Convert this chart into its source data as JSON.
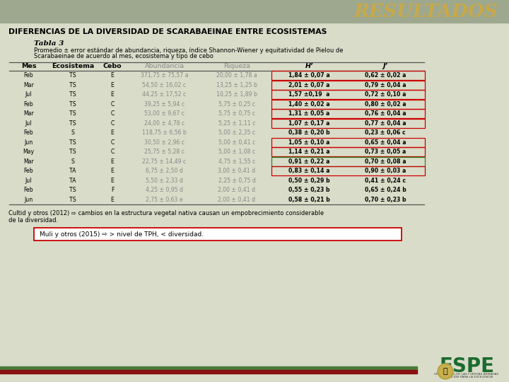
{
  "title": "RESULTADOS",
  "heading": "DIFERENCIAS DE LA DIVERSIDAD DE SCARABAEINAE ENTRE ECOSISTEMAS",
  "table_title": "Tabla 3",
  "table_subtitle_line1": "Promedio ± error estándar de abundancia, riqueza, índice Shannon-Wiener y equitatividad de Pielou de",
  "table_subtitle_line2": "Scarabaeinae de acuerdo al mes, ecosistema y tipo de cebo",
  "col_headers": [
    "Mes",
    "Ecosistema",
    "Cebo",
    "Abundancia",
    "Riqueza",
    "H’",
    "J’"
  ],
  "rows": [
    [
      "Feb",
      "TS",
      "E",
      "371,75 ± 75,57 a",
      "20,00 ± 1,78 a",
      "1,84 ± 0,07 a",
      "0,62 ± 0,02 a"
    ],
    [
      "Mar",
      "TS",
      "E",
      "54,50 ± 16,02 c",
      "13,25 ± 1,25 b",
      "2,01 ± 0,07 a",
      "0,79 ± 0,04 a"
    ],
    [
      "Jul",
      "TS",
      "E",
      "44,25 ± 17,52 c",
      "10,25 ± 1,89 b",
      "1,57 ±0,19  a",
      "0,72 ± 0,10 a"
    ],
    [
      "Feb",
      "TS",
      "C",
      "39,25 ± 5,94 c",
      "5,75 ± 0,25 c",
      "1,40 ± 0,02 a",
      "0,80 ± 0,02 a"
    ],
    [
      "Mar",
      "TS",
      "C",
      "53,00 ± 9,67 c",
      "5,75 ± 0,75 c",
      "1,31 ± 0,05 a",
      "0,76 ± 0,04 a"
    ],
    [
      "Jul",
      "TS",
      "C",
      "24,00 ± 4,78 c",
      "5,25 ± 1,11 c",
      "1,07 ± 0,17 a",
      "0,77 ± 0,04 a"
    ],
    [
      "Feb",
      "S",
      "E",
      "118,75 ± 6,56 b",
      "5,00 ± 2,35 c",
      "0,38 ± 0,20 b",
      "0,23 ± 0,06 c"
    ],
    [
      "Jun",
      "TS",
      "C",
      "30,50 ± 2,96 c",
      "5,00 ± 0,41 c",
      "1,05 ± 0,10 a",
      "0,65 ± 0,04 a"
    ],
    [
      "May",
      "TS",
      "C",
      "25,75 ± 5,28 c",
      "5,00 ± 1,08 c",
      "1,14 ± 0,21 a",
      "0,73 ± 0,05 a"
    ],
    [
      "Mar",
      "S",
      "E",
      "22,75 ± 14,49 c",
      "4,75 ± 1,55 c",
      "0,91 ± 0,22 a",
      "0,70 ± 0,08 a"
    ],
    [
      "Feb",
      "TA",
      "E",
      "6,75 ± 2,50 d",
      "3,00 ± 0,41 d",
      "0,83 ± 0,14 a",
      "0,90 ± 0,03 a"
    ],
    [
      "Jul",
      "TA",
      "E",
      "5,50 ± 2,33 d",
      "2,25 ± 0,75 d",
      "0,50 ± 0,29 b",
      "0,41 ± 0,24 c"
    ],
    [
      "Feb",
      "TS",
      "F",
      "4,25 ± 0,95 d",
      "2,00 ± 0,41 d",
      "0,55 ± 0,23 b",
      "0,65 ± 0,24 b"
    ],
    [
      "Jun",
      "TS",
      "E",
      "2,75 ± 0,63 e",
      "2,00 ± 0,41 d",
      "0,58 ± 0,21 b",
      "0,70 ± 0,23 b"
    ]
  ],
  "red_box_rows": [
    0,
    1,
    2,
    3,
    4,
    5,
    7,
    8,
    10
  ],
  "green_box_rows": [
    9
  ],
  "footnote1_line1": "Cultid y otros (2012) ⇨ cambios en la estructura vegetal nativa causan un empobrecimiento considerable",
  "footnote1_line2": "de la diversidad.",
  "footnote2": "Muli y otros (2015) ⇨ > nivel de TPH, < diversidad.",
  "bg_color": "#d9dcc8",
  "header_bar_color": "#9da88e",
  "title_color": "#c8a84a",
  "red_color": "#cc0000",
  "green_box_color": "#228B22",
  "bottom_bar_green": "#4a7a3a",
  "bottom_bar_red": "#8b1010",
  "espe_green": "#1a6b2e"
}
